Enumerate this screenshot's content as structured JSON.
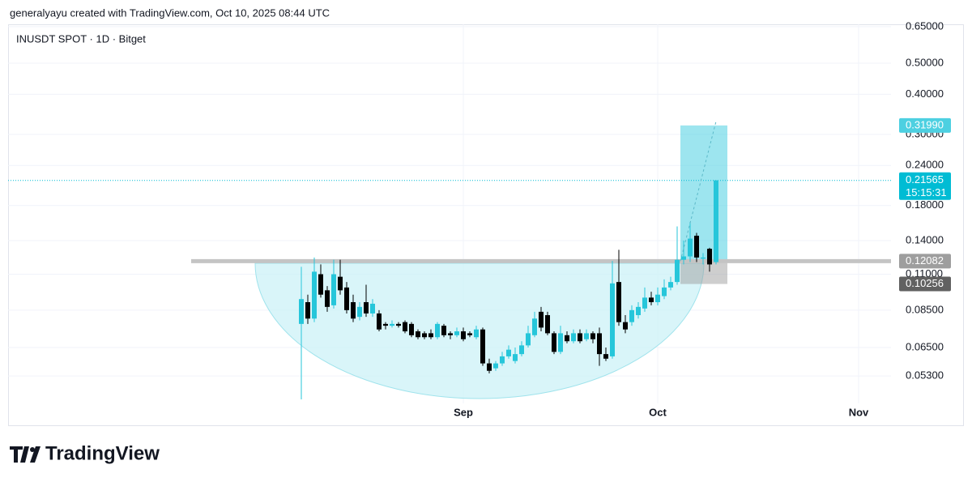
{
  "header": {
    "text": "generalyayu created with TradingView.com, Oct 10, 2025 08:44 UTC"
  },
  "footer": {
    "brand": "TradingView"
  },
  "chart_data": {
    "type": "candlestick",
    "title": "INUSDT SPOT · 1D · Bitget",
    "log_scale": true,
    "grid": true,
    "up_color": "#26c6da",
    "down_color": "#000000",
    "xlim": [
      -45.25,
      91
    ],
    "xticks": [
      {
        "value": 25,
        "label": "Sep"
      },
      {
        "value": 55,
        "label": "Oct"
      },
      {
        "value": 86,
        "label": "Nov"
      }
    ],
    "ylim": [
      0.0372,
      0.661
    ],
    "yticks": [
      {
        "value": 0.65,
        "label": "0.65000"
      },
      {
        "value": 0.5,
        "label": "0.50000"
      },
      {
        "value": 0.4,
        "label": "0.40000"
      },
      {
        "value": 0.3,
        "label": "0.30000"
      },
      {
        "value": 0.24,
        "label": "0.24000"
      },
      {
        "value": 0.18,
        "label": "0.18000"
      },
      {
        "value": 0.14,
        "label": "0.14000"
      },
      {
        "value": 0.11,
        "label": "0.11000"
      },
      {
        "value": 0.085,
        "label": "0.08500"
      },
      {
        "value": 0.065,
        "label": "0.06500"
      },
      {
        "value": 0.053,
        "label": "0.05300"
      }
    ],
    "open": [
      0.077,
      0.09,
      0.08,
      0.11,
      0.098,
      0.088,
      0.108,
      0.1,
      0.09,
      0.081,
      0.09,
      0.083,
      0.083,
      0.077,
      0.076,
      0.077,
      0.078,
      0.077,
      0.073,
      0.072,
      0.072,
      0.07,
      0.076,
      0.072,
      0.071,
      0.073,
      0.072,
      0.07,
      0.074,
      0.058,
      0.056,
      0.058,
      0.061,
      0.059,
      0.062,
      0.066,
      0.071,
      0.084,
      0.082,
      0.072,
      0.063,
      0.071,
      0.068,
      0.072,
      0.069,
      0.072,
      0.072,
      0.062,
      0.061,
      0.104,
      0.078,
      0.078,
      0.082,
      0.086,
      0.093,
      0.09,
      0.094,
      0.1,
      0.104,
      0.122,
      0.125,
      0.145,
      0.123,
      0.132,
      0.12
    ],
    "high": [
      0.116,
      0.095,
      0.124,
      0.118,
      0.101,
      0.122,
      0.122,
      0.104,
      0.095,
      0.09,
      0.102,
      0.092,
      0.085,
      0.078,
      0.079,
      0.078,
      0.079,
      0.078,
      0.074,
      0.073,
      0.074,
      0.078,
      0.077,
      0.073,
      0.075,
      0.075,
      0.073,
      0.076,
      0.075,
      0.06,
      0.059,
      0.063,
      0.066,
      0.065,
      0.068,
      0.076,
      0.084,
      0.087,
      0.084,
      0.073,
      0.076,
      0.073,
      0.074,
      0.074,
      0.074,
      0.073,
      0.075,
      0.065,
      0.121,
      0.131,
      0.082,
      0.088,
      0.09,
      0.1,
      0.097,
      0.1,
      0.106,
      0.108,
      0.155,
      0.14,
      0.16,
      0.148,
      0.128,
      0.133,
      0.216
    ],
    "low": [
      0.0448,
      0.077,
      0.078,
      0.093,
      0.084,
      0.086,
      0.095,
      0.083,
      0.078,
      0.079,
      0.081,
      0.081,
      0.073,
      0.074,
      0.075,
      0.075,
      0.072,
      0.07,
      0.069,
      0.069,
      0.069,
      0.069,
      0.07,
      0.069,
      0.07,
      0.068,
      0.07,
      0.069,
      0.057,
      0.054,
      0.055,
      0.057,
      0.06,
      0.058,
      0.061,
      0.065,
      0.07,
      0.073,
      0.071,
      0.062,
      0.062,
      0.067,
      0.067,
      0.067,
      0.068,
      0.067,
      0.057,
      0.059,
      0.06,
      0.076,
      0.072,
      0.076,
      0.08,
      0.084,
      0.088,
      0.088,
      0.092,
      0.098,
      0.102,
      0.118,
      0.12,
      0.12,
      0.118,
      0.112,
      0.118
    ],
    "close": [
      0.092,
      0.08,
      0.112,
      0.095,
      0.087,
      0.11,
      0.098,
      0.085,
      0.08,
      0.087,
      0.083,
      0.089,
      0.074,
      0.076,
      0.077,
      0.076,
      0.073,
      0.071,
      0.07,
      0.07,
      0.07,
      0.077,
      0.071,
      0.071,
      0.073,
      0.069,
      0.071,
      0.074,
      0.058,
      0.055,
      0.058,
      0.061,
      0.064,
      0.062,
      0.066,
      0.072,
      0.08,
      0.075,
      0.072,
      0.063,
      0.072,
      0.068,
      0.072,
      0.068,
      0.072,
      0.069,
      0.062,
      0.06,
      0.103,
      0.078,
      0.074,
      0.085,
      0.087,
      0.093,
      0.09,
      0.095,
      0.1,
      0.104,
      0.122,
      0.125,
      0.142,
      0.124,
      0.124,
      0.118,
      0.21565
    ],
    "price_labels": [
      {
        "value": 0.3199,
        "label": "0.31990",
        "color": "#4dd0e1"
      },
      {
        "value": 0.21565,
        "label": "0.21565",
        "color": "#00bcd4",
        "countdown": "15:15:31"
      },
      {
        "value": 0.12082,
        "label": "0.12082",
        "color": "#9e9e9e"
      },
      {
        "value": 0.10256,
        "label": "0.10256",
        "color": "#616161"
      }
    ]
  }
}
